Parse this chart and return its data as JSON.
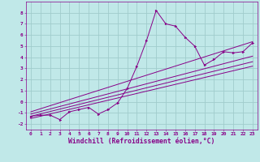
{
  "xlabel": "Windchill (Refroidissement éolien,°C)",
  "bg_color": "#c0e8e8",
  "grid_color": "#a0cccc",
  "line_color": "#880088",
  "xlim": [
    -0.5,
    23.5
  ],
  "ylim": [
    -2.5,
    9.0
  ],
  "xticks": [
    0,
    1,
    2,
    3,
    4,
    5,
    6,
    7,
    8,
    9,
    10,
    11,
    12,
    13,
    14,
    15,
    16,
    17,
    18,
    19,
    20,
    21,
    22,
    23
  ],
  "yticks": [
    -2,
    -1,
    0,
    1,
    2,
    3,
    4,
    5,
    6,
    7,
    8
  ],
  "jagged_x": [
    0,
    1,
    2,
    3,
    4,
    5,
    6,
    7,
    8,
    9,
    10,
    11,
    12,
    13,
    14,
    15,
    16,
    17,
    18,
    19,
    20,
    21,
    22,
    23
  ],
  "jagged_y": [
    -1.3,
    -1.2,
    -1.2,
    -1.6,
    -0.9,
    -0.7,
    -0.5,
    -1.1,
    -0.7,
    -0.1,
    1.2,
    3.2,
    5.5,
    8.2,
    7.0,
    6.8,
    5.8,
    5.0,
    3.3,
    3.8,
    4.5,
    4.4,
    4.5,
    5.3
  ],
  "line1_x": [
    0,
    23
  ],
  "line1_y": [
    -1.5,
    3.2
  ],
  "line2_x": [
    0,
    23
  ],
  "line2_y": [
    -1.3,
    3.6
  ],
  "line3_x": [
    0,
    23
  ],
  "line3_y": [
    -1.1,
    4.1
  ],
  "line4_x": [
    0,
    23
  ],
  "line4_y": [
    -0.9,
    5.4
  ],
  "font_color": "#880088",
  "tick_fontsize": 4.5,
  "xlabel_fontsize": 5.8,
  "linewidth": 0.7,
  "markersize": 2.0
}
